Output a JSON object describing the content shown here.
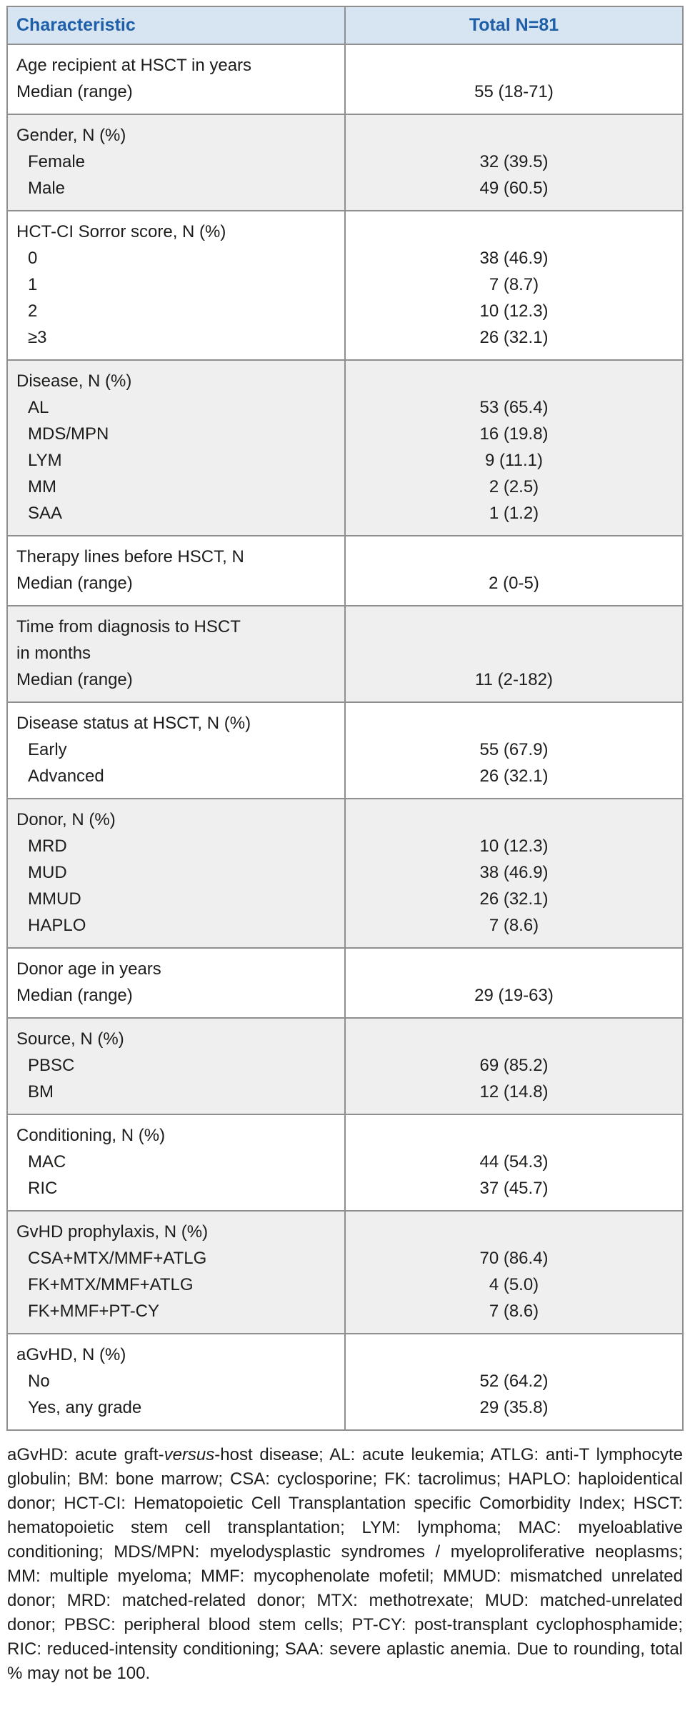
{
  "theme": {
    "header_bg": "#d7e5f2",
    "header_text": "#1f5fa8",
    "border": "#8f8f8f",
    "shaded_row_bg": "#efefef",
    "text": "#1d1d1b",
    "page_bg": "#ffffff"
  },
  "table": {
    "columns": [
      "Characteristic",
      "Total N=81"
    ],
    "rows": [
      {
        "shaded": false,
        "lines": [
          {
            "label": "Age recipient at HSCT in years",
            "value": "",
            "indent": false
          },
          {
            "label": "Median (range)",
            "value": "55 (18-71)",
            "indent": false
          }
        ]
      },
      {
        "shaded": true,
        "lines": [
          {
            "label": "Gender, N (%)",
            "value": "",
            "indent": false
          },
          {
            "label": "Female",
            "value": "32 (39.5)",
            "indent": true
          },
          {
            "label": "Male",
            "value": "49 (60.5)",
            "indent": true
          }
        ]
      },
      {
        "shaded": false,
        "lines": [
          {
            "label": "HCT-CI Sorror score, N (%)",
            "value": "",
            "indent": false
          },
          {
            "label": "0",
            "value": "38 (46.9)",
            "indent": true
          },
          {
            "label": "1",
            "value": "7 (8.7)",
            "indent": true
          },
          {
            "label": "2",
            "value": "10 (12.3)",
            "indent": true
          },
          {
            "label": "≥3",
            "value": "26 (32.1)",
            "indent": true
          }
        ]
      },
      {
        "shaded": true,
        "lines": [
          {
            "label": "Disease, N (%)",
            "value": "",
            "indent": false
          },
          {
            "label": "AL",
            "value": "53 (65.4)",
            "indent": true
          },
          {
            "label": "MDS/MPN",
            "value": "16 (19.8)",
            "indent": true
          },
          {
            "label": "LYM",
            "value": "9 (11.1)",
            "indent": true
          },
          {
            "label": "MM",
            "value": "2 (2.5)",
            "indent": true
          },
          {
            "label": "SAA",
            "value": "1 (1.2)",
            "indent": true
          }
        ]
      },
      {
        "shaded": false,
        "lines": [
          {
            "label": "Therapy lines before HSCT, N",
            "value": "",
            "indent": false
          },
          {
            "label": "Median (range)",
            "value": "2 (0-5)",
            "indent": false
          }
        ]
      },
      {
        "shaded": true,
        "lines": [
          {
            "label": "Time from diagnosis to HSCT",
            "value": "",
            "indent": false
          },
          {
            "label": "in months",
            "value": "",
            "indent": false
          },
          {
            "label": "Median (range)",
            "value": "11 (2-182)",
            "indent": false
          }
        ]
      },
      {
        "shaded": false,
        "lines": [
          {
            "label": "Disease status at HSCT, N (%)",
            "value": "",
            "indent": false
          },
          {
            "label": "Early",
            "value": "55 (67.9)",
            "indent": true
          },
          {
            "label": "Advanced",
            "value": "26 (32.1)",
            "indent": true
          }
        ]
      },
      {
        "shaded": true,
        "lines": [
          {
            "label": "Donor, N (%)",
            "value": "",
            "indent": false
          },
          {
            "label": "MRD",
            "value": "10 (12.3)",
            "indent": true
          },
          {
            "label": "MUD",
            "value": "38 (46.9)",
            "indent": true
          },
          {
            "label": "MMUD",
            "value": "26 (32.1)",
            "indent": true
          },
          {
            "label": "HAPLO",
            "value": "7 (8.6)",
            "indent": true
          }
        ]
      },
      {
        "shaded": false,
        "lines": [
          {
            "label": "Donor age in years",
            "value": "",
            "indent": false
          },
          {
            "label": "Median (range)",
            "value": "29 (19-63)",
            "indent": false
          }
        ]
      },
      {
        "shaded": true,
        "lines": [
          {
            "label": "Source, N (%)",
            "value": "",
            "indent": false
          },
          {
            "label": "PBSC",
            "value": "69 (85.2)",
            "indent": true
          },
          {
            "label": "BM",
            "value": "12 (14.8)",
            "indent": true
          }
        ]
      },
      {
        "shaded": false,
        "lines": [
          {
            "label": "Conditioning, N (%)",
            "value": "",
            "indent": false
          },
          {
            "label": "MAC",
            "value": "44 (54.3)",
            "indent": true
          },
          {
            "label": "RIC",
            "value": "37 (45.7)",
            "indent": true
          }
        ]
      },
      {
        "shaded": true,
        "lines": [
          {
            "label": "GvHD prophylaxis, N (%)",
            "value": "",
            "indent": false
          },
          {
            "label": "CSA+MTX/MMF+ATLG",
            "value": "70 (86.4)",
            "indent": true
          },
          {
            "label": "FK+MTX/MMF+ATLG",
            "value": "4 (5.0)",
            "indent": true
          },
          {
            "label": "FK+MMF+PT-CY",
            "value": "7 (8.6)",
            "indent": true
          }
        ]
      },
      {
        "shaded": false,
        "lines": [
          {
            "label": "aGvHD, N (%)",
            "value": "",
            "indent": false
          },
          {
            "label": "No",
            "value": "52 (64.2)",
            "indent": true
          },
          {
            "label": "Yes, any grade",
            "value": "29 (35.8)",
            "indent": true
          }
        ]
      }
    ]
  },
  "footnote": {
    "segments": [
      "aGvHD: acute graft-",
      "versus",
      "-host disease; AL: acute leukemia; ATLG: anti-T lymphocyte globulin; BM: bone marrow; CSA: cyclosporine; FK: tacrolimus; HAPLO: haploidentical donor; HCT-CI: Hematopoietic Cell Transplantation specific Comorbidity Index; HSCT: hematopoietic stem cell transplantation; LYM: lymphoma; MAC: myeloablative conditioning; MDS/MPN: myelodysplastic syndromes / myeloproliferative neoplasms; MM: multiple myeloma; MMF: mycophenolate mofetil; MMUD: mismatched unrelated donor; MRD: matched-related donor; MTX: methotrexate; MUD: matched-unrelated donor; PBSC: peripheral blood stem cells; PT-CY: post-transplant cyclophosphamide; RIC: reduced-intensity conditioning; SAA: severe aplastic anemia. Due to rounding, total % may not be 100."
    ]
  }
}
